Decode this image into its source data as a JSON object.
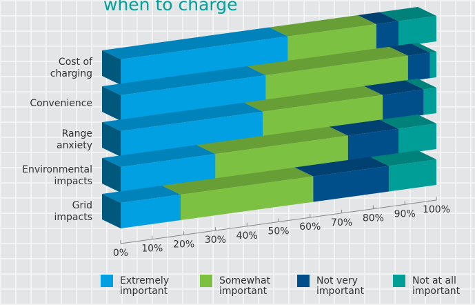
{
  "chart_data": {
    "type": "bar3d_stacked_horizontal",
    "title": "when to charge",
    "categories": [
      "Cost of charging",
      "Convenience",
      "Range anxiety",
      "Environmental impacts",
      "Grid impacts"
    ],
    "series": [
      {
        "name": "Extremely important",
        "color": "#00a0e3",
        "values": [
          53,
          46,
          45,
          30,
          19
        ]
      },
      {
        "name": "Somewhat important",
        "color": "#7dc142",
        "values": [
          28,
          45,
          38,
          42,
          42
        ]
      },
      {
        "name": "Not very important",
        "color": "#004f8b",
        "values": [
          7,
          7,
          13,
          16,
          24
        ]
      },
      {
        "name": "Not at all important",
        "color": "#009e96",
        "values": [
          12,
          2,
          4,
          12,
          15
        ]
      }
    ],
    "xlim": [
      0,
      100
    ],
    "xticks": [
      {
        "value": 0,
        "label": "0%"
      },
      {
        "value": 10,
        "label": "10%"
      },
      {
        "value": 20,
        "label": "20%"
      },
      {
        "value": 30,
        "label": "30%"
      },
      {
        "value": 40,
        "label": "40%"
      },
      {
        "value": 50,
        "label": "50%"
      },
      {
        "value": 60,
        "label": "60%"
      },
      {
        "value": 70,
        "label": "70%"
      },
      {
        "value": 80,
        "label": "80%"
      },
      {
        "value": 90,
        "label": "90%"
      },
      {
        "value": 100,
        "label": "100%"
      }
    ]
  }
}
